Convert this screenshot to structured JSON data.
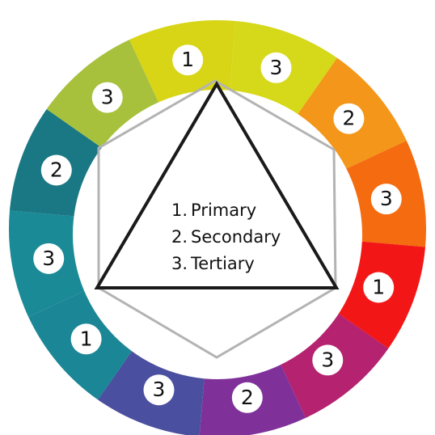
{
  "wheel": {
    "segments": [
      {
        "color": "#d8d516",
        "number": "1"
      },
      {
        "color": "#d6d81a",
        "number": "3"
      },
      {
        "color": "#f39619",
        "number": "2"
      },
      {
        "color": "#f46b10",
        "number": "3"
      },
      {
        "color": "#f31616",
        "number": "1"
      },
      {
        "color": "#b42270",
        "number": "3"
      },
      {
        "color": "#7f3199",
        "number": "2"
      },
      {
        "color": "#4b4f9f",
        "number": "3"
      },
      {
        "color": "#1a8696",
        "number": "1"
      },
      {
        "color": "#1a8a96",
        "number": "3"
      },
      {
        "color": "#1a7885",
        "number": "2"
      },
      {
        "color": "#a7c13d",
        "number": "3"
      }
    ]
  },
  "legend": [
    {
      "num": "1.",
      "label": "Primary"
    },
    {
      "num": "2.",
      "label": "Secondary"
    },
    {
      "num": "3.",
      "label": "Tertiary"
    }
  ]
}
